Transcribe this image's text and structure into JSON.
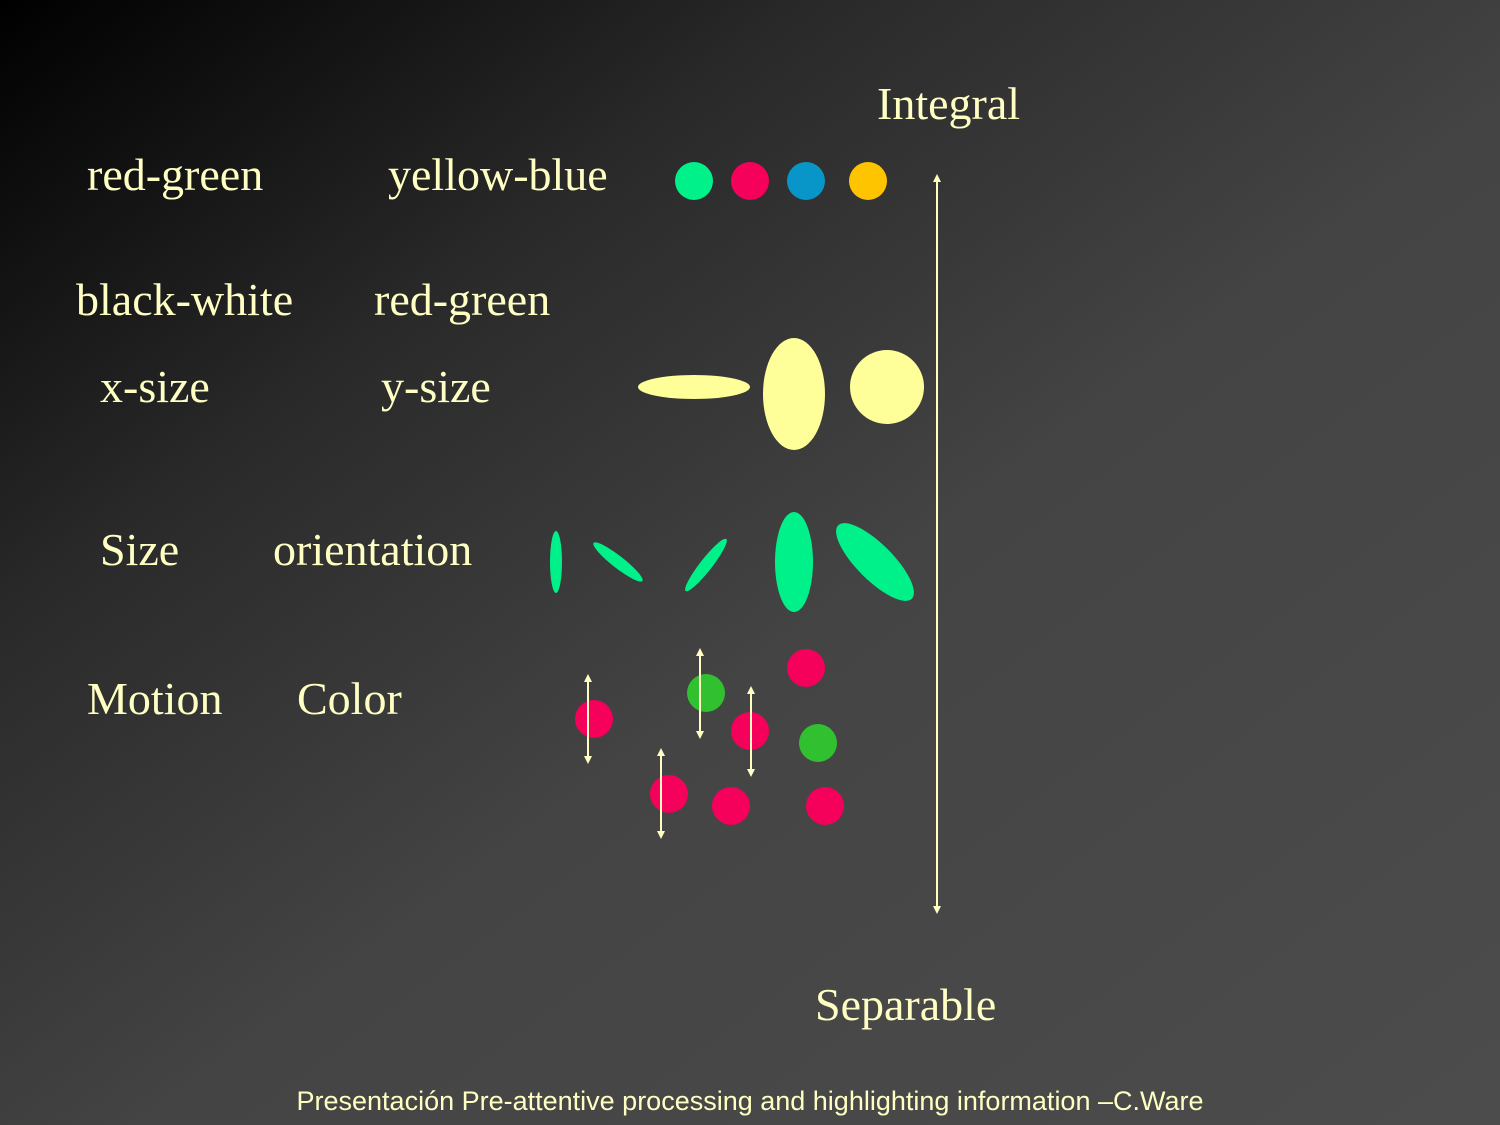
{
  "axis": {
    "top_label": "Integral",
    "bottom_label": "Separable"
  },
  "rows": [
    {
      "left": "red-green",
      "right": "yellow-blue"
    },
    {
      "left": "black-white",
      "right": "red-green"
    },
    {
      "left": "x-size",
      "right": "y-size"
    },
    {
      "left": "Size",
      "right": "orientation"
    },
    {
      "left": "Motion",
      "right": "Color"
    }
  ],
  "footer": "Presentación Pre-attentive processing and highlighting information –C.Ware",
  "colors": {
    "text": "#ffffc4",
    "green": "#00f08a",
    "magenta": "#f5005a",
    "blue": "#0896c8",
    "yellow": "#ffc400",
    "cream": "#ffff9a",
    "motion_green": "#30c030"
  }
}
